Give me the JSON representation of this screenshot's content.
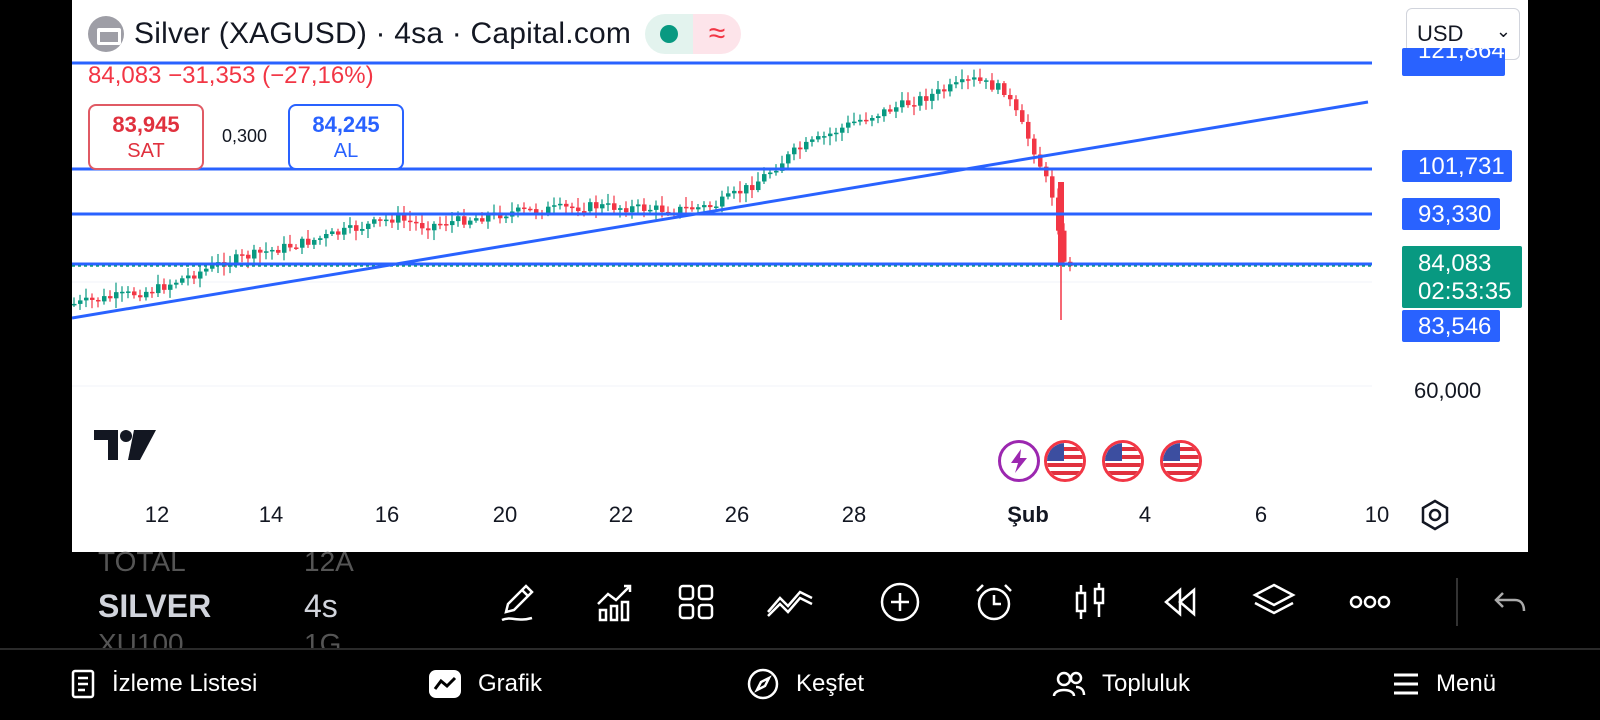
{
  "header": {
    "title": "Silver (XAGUSD) · 4sa · Capital.com",
    "change_line": "84,083  −31,353 (−27,16%)"
  },
  "quote": {
    "sell_price": "83,945",
    "sell_label": "SAT",
    "spread": "0,300",
    "buy_price": "84,245",
    "buy_label": "AL"
  },
  "currency": {
    "selected": "USD"
  },
  "price_axis": {
    "top_cut": "121,864",
    "level_1": "101,731",
    "level_2": "93,330",
    "current": "84,083",
    "countdown": "02:53:35",
    "level_3": "83,546",
    "tick": "60,000"
  },
  "time_axis": [
    "12",
    "14",
    "16",
    "20",
    "22",
    "26",
    "28",
    "Şub",
    "4",
    "6",
    "10"
  ],
  "colors": {
    "up": "#089981",
    "down": "#f23645",
    "line": "#2962ff",
    "current": "#089981"
  },
  "events": [
    "flash-icon",
    "us-flag-icon",
    "us-flag-icon",
    "us-flag-icon"
  ],
  "toolbar": {
    "ghost_top": [
      "TOTAL",
      "12A"
    ],
    "symbol": "SILVER",
    "interval": "4s",
    "ghost_bottom": [
      "XU100",
      "1G"
    ]
  },
  "nav": {
    "watchlist": "İzleme Listesi",
    "chart": "Grafik",
    "explore": "Keşfet",
    "community": "Topluluk",
    "menu": "Menü"
  }
}
